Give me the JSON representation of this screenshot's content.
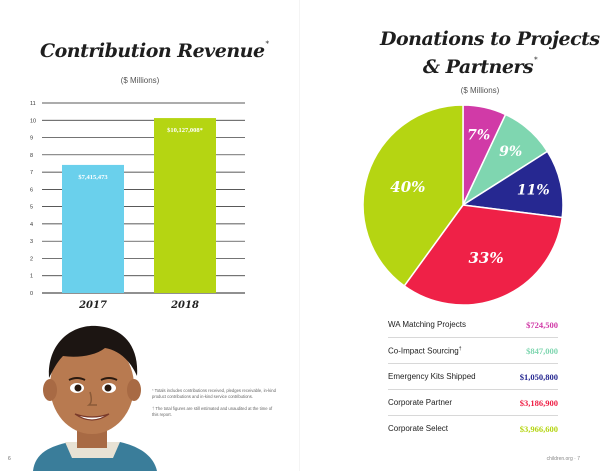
{
  "left_page": {
    "title": "Contribution Revenue",
    "title_marker": "*",
    "subtitle": "($ Millions)",
    "page_number": "6",
    "footnotes": [
      {
        "marker": "*",
        "text": "Totals includes contributions received, pledges receivable, in-kind product contributions and in-kind service contributions."
      },
      {
        "marker": "†",
        "text": "The total figures are still estimated and unaudited at the time of this report."
      }
    ],
    "photo_icon": "child-portrait"
  },
  "right_page": {
    "title_line1": "Donations to Projects",
    "title_line2": "& Partners",
    "title_marker": "*",
    "subtitle": "($ Millions)",
    "site_url": "children.org",
    "page_number": "7",
    "legend": [
      {
        "label": "WA Matching Projects",
        "value": "$724,500",
        "color": "#d13aa7"
      },
      {
        "label": "Co-Impact Sourcing",
        "marker": "†",
        "value": "$847,000",
        "color": "#7fd6b0"
      },
      {
        "label": "Emergency Kits Shipped",
        "value": "$1,050,800",
        "color": "#262891"
      },
      {
        "label": "Corporate Partner",
        "value": "$3,186,900",
        "color": "#ef2147"
      },
      {
        "label": "Corporate Select",
        "value": "$3,966,600",
        "color": "#b5d512"
      }
    ]
  },
  "chart_data": [
    {
      "type": "bar",
      "title": "Contribution Revenue",
      "subtitle": "($ Millions)",
      "categories": [
        "2017",
        "2018"
      ],
      "values": [
        7.415473,
        10.127008
      ],
      "data_labels": [
        "$7,415,473",
        "$10,127,008*"
      ],
      "colors": [
        "#6ad0ec",
        "#b5d512"
      ],
      "ylim": [
        0,
        11
      ],
      "yticks": [
        "0",
        "1",
        "2",
        "3",
        "4",
        "5",
        "6",
        "7",
        "8",
        "9",
        "10",
        "11"
      ],
      "grid": true
    },
    {
      "type": "pie",
      "title": "Donations to Projects & Partners",
      "subtitle": "($ Millions)",
      "slices": [
        {
          "label": "7%",
          "value": 7,
          "color": "#d13aa7"
        },
        {
          "label": "9%",
          "value": 9,
          "color": "#7fd6b0"
        },
        {
          "label": "11%",
          "value": 11,
          "color": "#262891"
        },
        {
          "label": "33%",
          "value": 33,
          "color": "#ef2147"
        },
        {
          "label": "40%",
          "value": 40,
          "color": "#b5d512"
        }
      ],
      "start_angle_deg": 0,
      "direction": "clockwise"
    }
  ]
}
